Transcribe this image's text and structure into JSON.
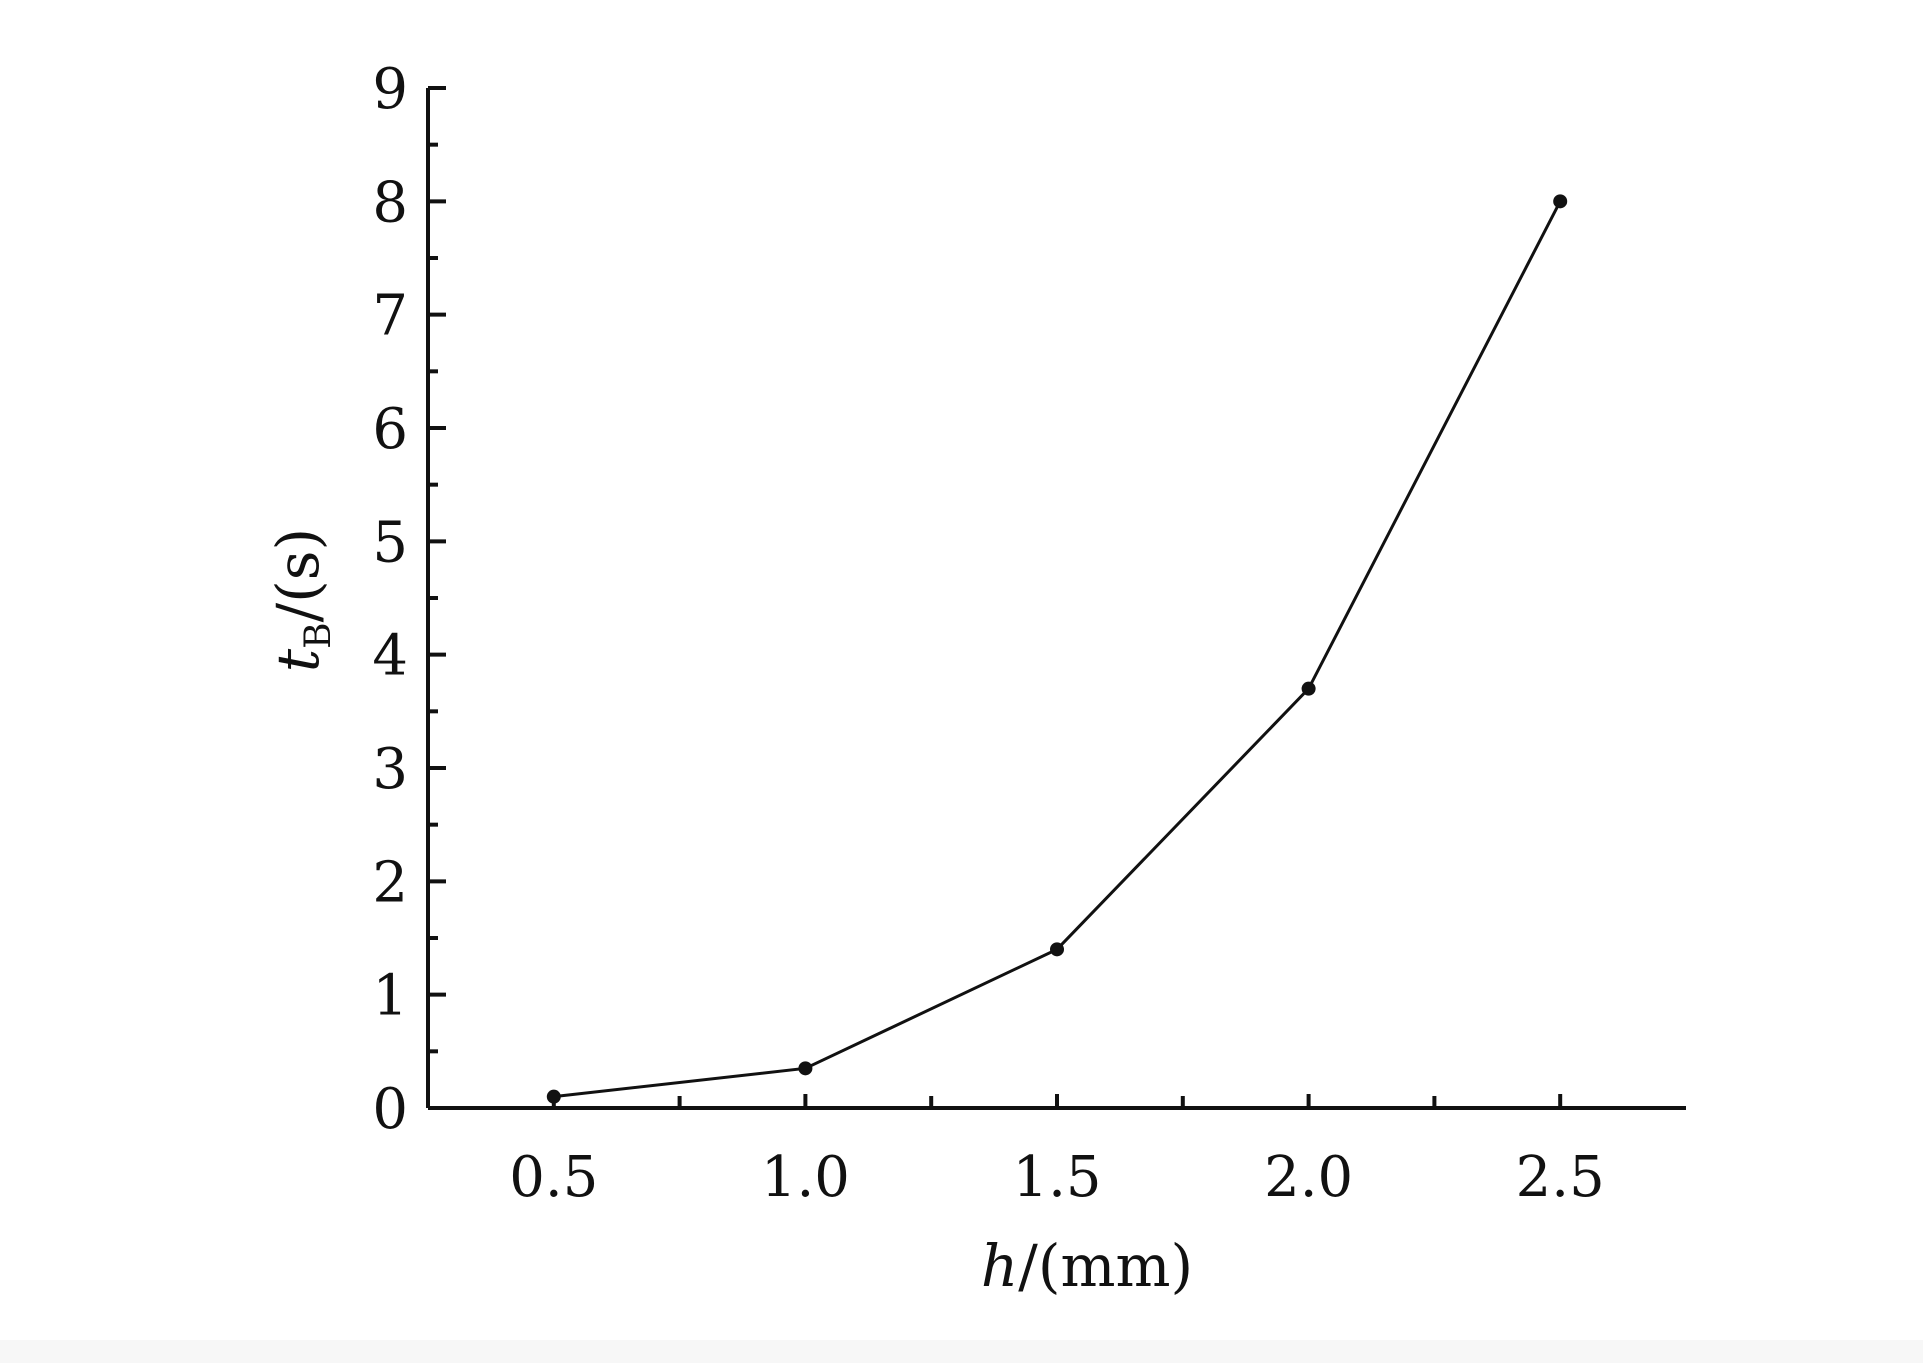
{
  "chart_data": {
    "type": "line",
    "title": "",
    "xlabel": {
      "italic": "h",
      "rest": "/(mm)"
    },
    "ylabel": {
      "italic": "t",
      "sub": "B",
      "rest": "/(s)"
    },
    "xlim": [
      0.25,
      2.75
    ],
    "ylim": [
      0,
      9
    ],
    "x_ticks": [
      0.5,
      1.0,
      1.5,
      2.0,
      2.5
    ],
    "x_tick_labels": [
      "0.5",
      "1.0",
      "1.5",
      "2.0",
      "2.5"
    ],
    "x_minor_ticks": [
      0.75,
      1.25,
      1.75,
      2.25
    ],
    "y_ticks": [
      0,
      1,
      2,
      3,
      4,
      5,
      6,
      7,
      8,
      9
    ],
    "y_tick_labels": [
      "0",
      "1",
      "2",
      "3",
      "4",
      "5",
      "6",
      "7",
      "8",
      "9"
    ],
    "y_minor_ticks": [
      0.5,
      1.5,
      2.5,
      3.5,
      4.5,
      5.5,
      6.5,
      7.5,
      8.5
    ],
    "grid": false,
    "legend": "none",
    "series": [
      {
        "x": [
          0.5,
          1.0,
          1.5,
          2.0,
          2.5
        ],
        "values": [
          0.1,
          0.35,
          1.4,
          3.7,
          8.0
        ],
        "color": "#111111",
        "marker": "circle"
      }
    ]
  }
}
